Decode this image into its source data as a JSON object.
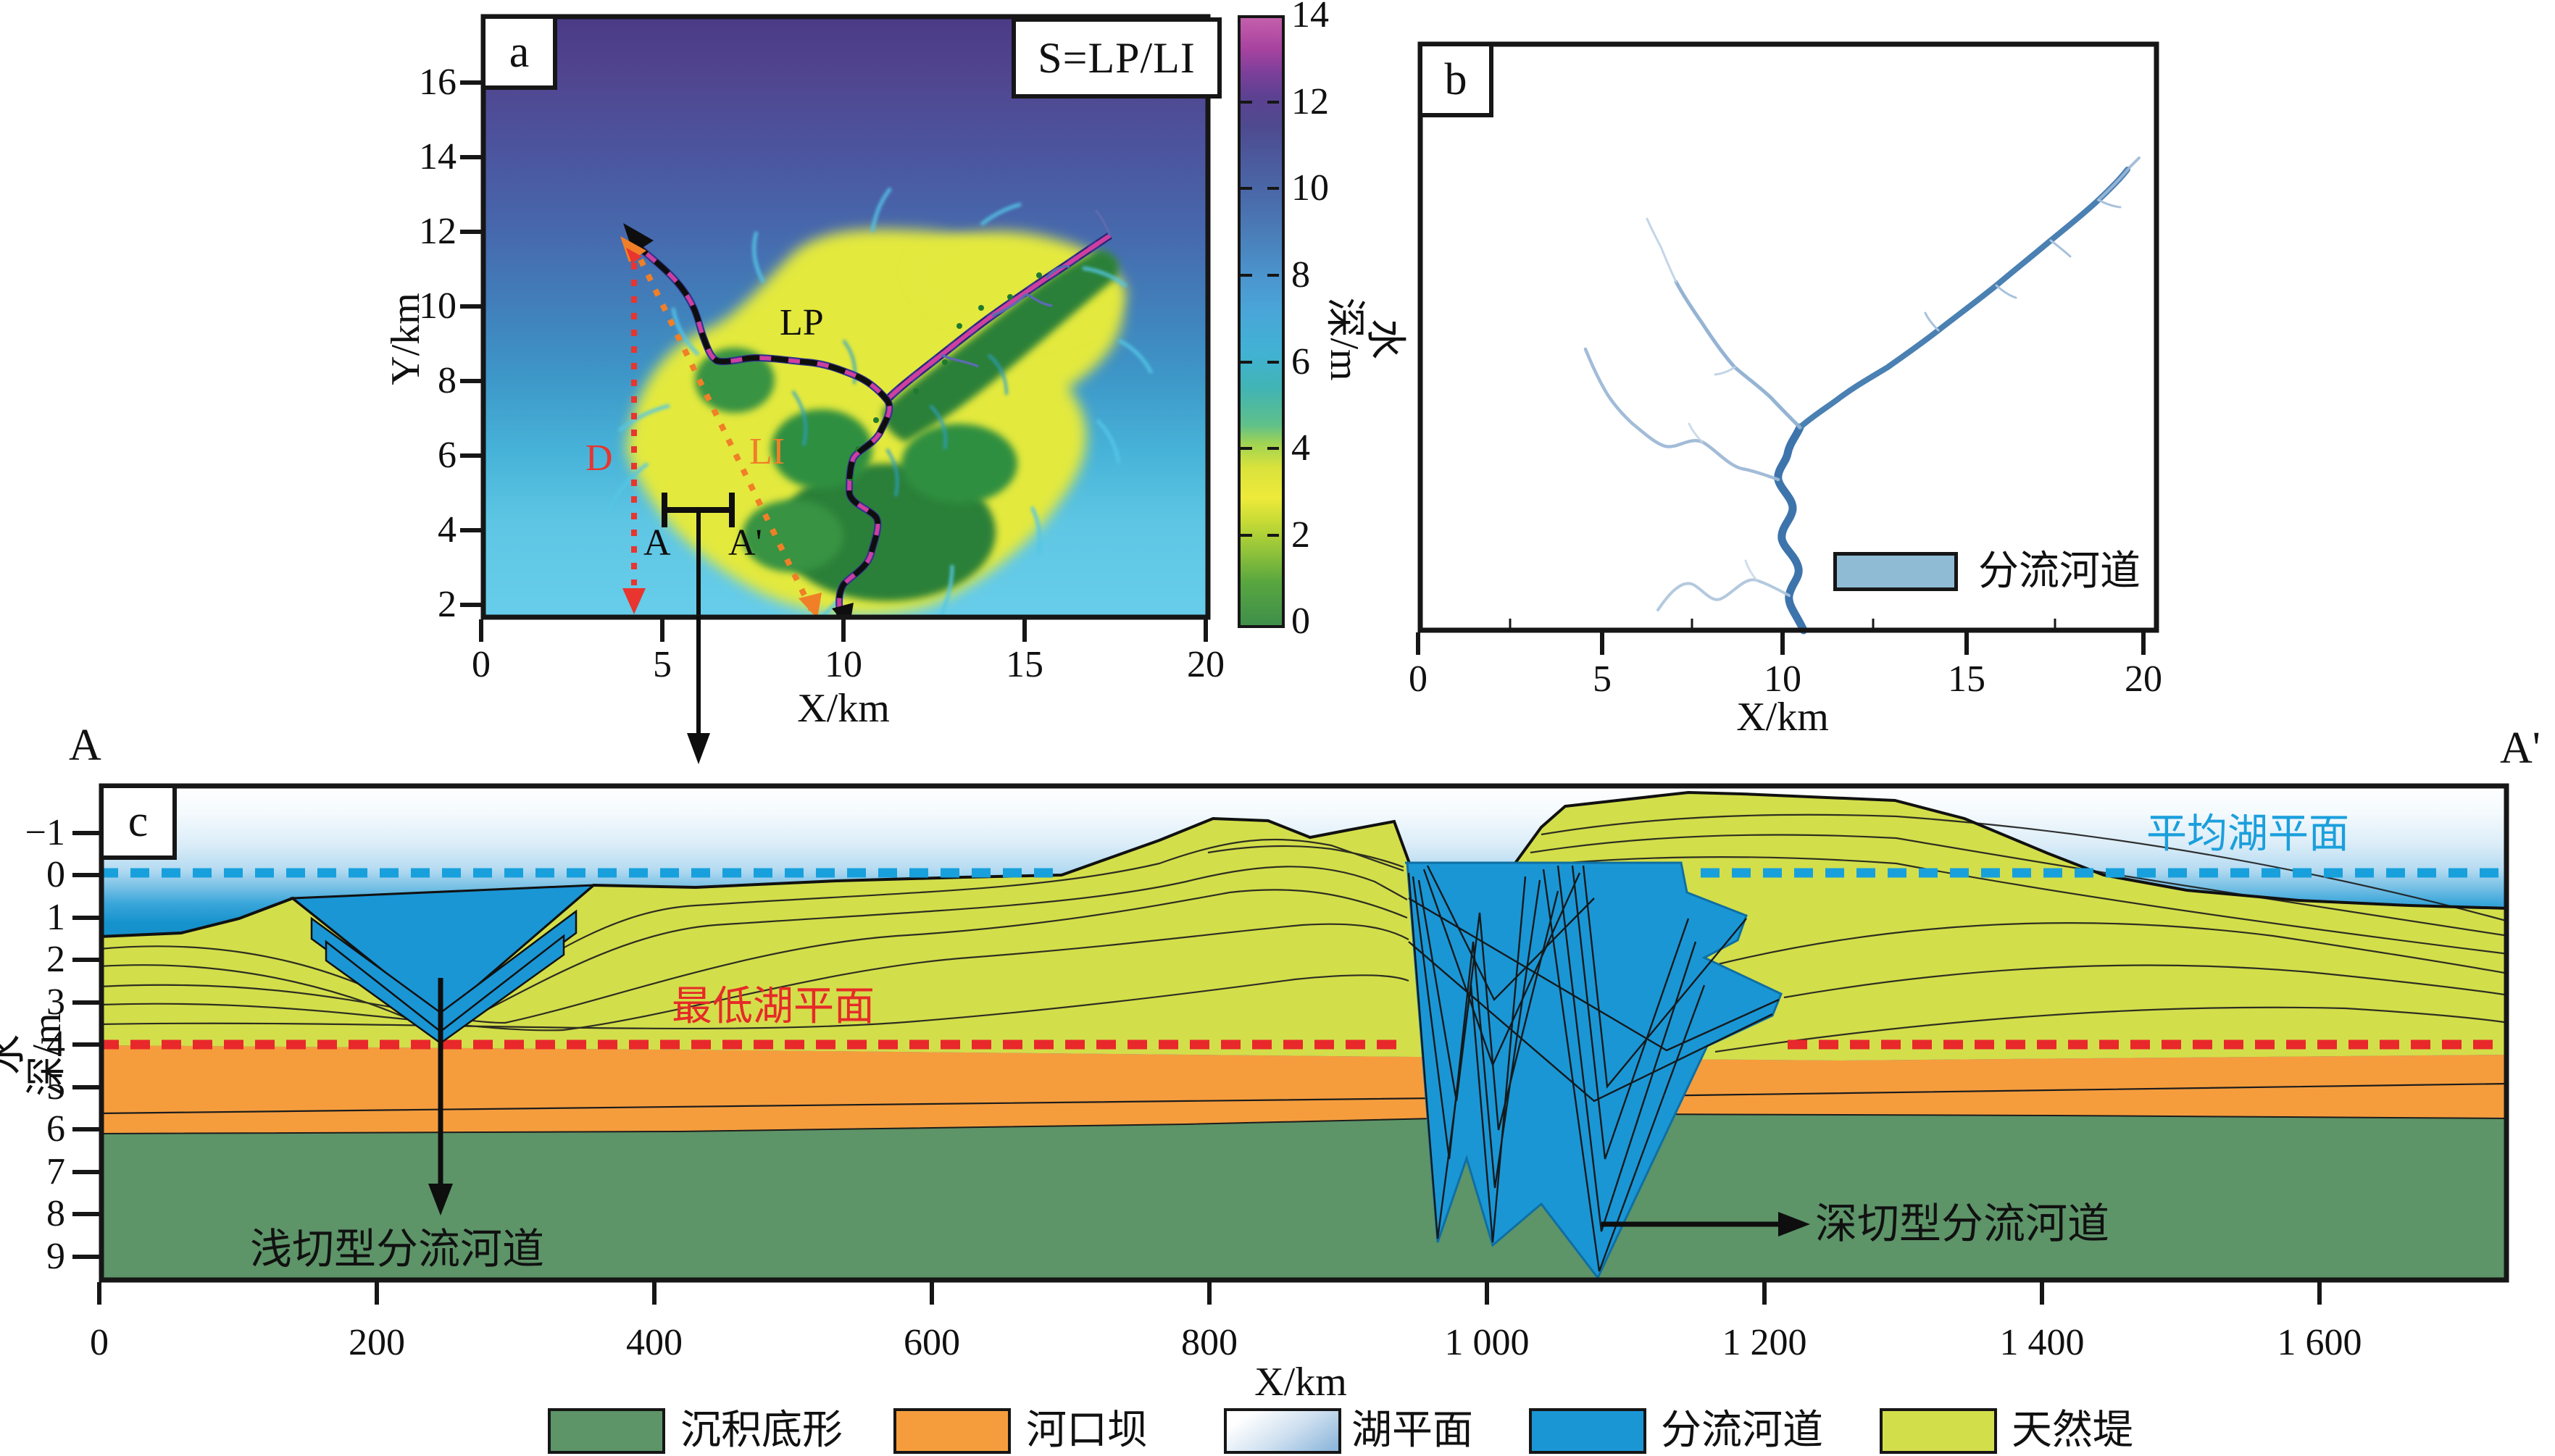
{
  "panel_a": {
    "tag": "a",
    "formula": "S=LP/LI",
    "xlabel": "X/km",
    "ylabel": "Y/km",
    "x_ticks": [
      "0",
      "5",
      "10",
      "15",
      "20"
    ],
    "y_ticks": [
      "16",
      "14",
      "12",
      "10",
      "8",
      "6",
      "4",
      "2"
    ],
    "labels": {
      "lp": "LP",
      "li": "LI",
      "d": "D",
      "a": "A",
      "a_prime": "A'"
    }
  },
  "colorbar": {
    "label": "水深/m",
    "ticks": [
      "14",
      "12",
      "10",
      "8",
      "6",
      "4",
      "2",
      "0"
    ]
  },
  "panel_b": {
    "tag": "b",
    "xlabel": "X/km",
    "x_ticks": [
      "0",
      "5",
      "10",
      "15",
      "20"
    ],
    "legend_label": "分流河道"
  },
  "panel_c": {
    "tag": "c",
    "xlabel": "X/km",
    "ylabel": "水深/m",
    "x_ticks": [
      "0",
      "200",
      "400",
      "600",
      "800",
      "1 000",
      "1 200",
      "1 400",
      "1 600"
    ],
    "y_ticks": [
      "−1",
      "0",
      "1",
      "2",
      "3",
      "4",
      "5",
      "6",
      "7",
      "8",
      "9"
    ],
    "section_start": "A",
    "section_end": "A'",
    "mean_lake_label": "平均湖平面",
    "lowest_lake_label": "最低湖平面",
    "shallow_channel_label": "浅切型分流河道",
    "deep_channel_label": "深切型分流河道"
  },
  "legend": {
    "items": [
      {
        "label": "沉积底形",
        "color": "#5d9468"
      },
      {
        "label": "河口坝",
        "color": "#f59d3d"
      },
      {
        "label": "湖平面",
        "color": "gradient"
      },
      {
        "label": "分流河道",
        "color": "#1a96d5"
      },
      {
        "label": "天然堤",
        "color": "#d3de4b"
      }
    ]
  },
  "colors": {
    "channel_blue": "#1a96d5",
    "levee_yellow": "#d3de4b",
    "mouth_bar_orange": "#f59d3d",
    "substrate_green": "#5d9468",
    "mean_lake_line": "#18a0dc",
    "lowest_lake_line": "#e8282b",
    "li_orange": "#f07f28",
    "d_red": "#e8352f",
    "channel_magenta": "#cf3f9f"
  },
  "chart_data": [
    {
      "id": "a",
      "type": "heatmap",
      "title": "S=LP/LI",
      "xlabel": "X/km",
      "ylabel": "Y/km",
      "x_range": [
        0,
        20
      ],
      "y_range": [
        1.5,
        17.8
      ],
      "colorbar": {
        "label": "水深/m",
        "range": [
          0,
          14
        ],
        "ticks": [
          0,
          2,
          4,
          6,
          8,
          10,
          12,
          14
        ]
      },
      "annotations": [
        "LP",
        "LI",
        "D",
        "A",
        "A'"
      ],
      "description": "Simulated water-depth map: deep purple lake (12-14 m) at top grading to shallow cyan (6-8 m); a yellow-green delta fan (0-4 m) with a magenta distributary channel running from (17,12) to (10,0); LP = channel path length (black dashed), LI = straight-line length (orange dotted) from (4.2,11.7) to (9.8,0.3), D = red dotted vertical reference line at x=4.2, A–A' = cross-section marker at (5.1-6.9, 4.6)"
    },
    {
      "id": "b",
      "type": "map",
      "xlabel": "X/km",
      "x_range": [
        0,
        20
      ],
      "legend": [
        "分流河道"
      ],
      "description": "Extracted distributary-channel network in blue on white; trunk channel from (10.5,2) branching at (10.5,7) into a thick NE arm to (19.5,14), a NW arm to (6.3,12.7), a W arm to (5,8) and a faint SW arm"
    },
    {
      "id": "c",
      "type": "cross-section",
      "xlabel": "X/km",
      "ylabel": "水深/m",
      "x_range": [
        0,
        1730
      ],
      "depth_range_m": [
        -2.1,
        10
      ],
      "x_ticks": [
        0,
        200,
        400,
        600,
        800,
        1000,
        1200,
        1400,
        1600
      ],
      "y_ticks": [
        -1,
        0,
        1,
        2,
        3,
        4,
        5,
        6,
        7,
        8,
        9
      ],
      "levels": {
        "mean_lake_level_m": 0,
        "lowest_lake_level_m": 4
      },
      "layers": [
        {
          "name": "湖平面",
          "role": "lake water gradient above sediment surface"
        },
        {
          "name": "天然堤",
          "role": "levee wedge from surface down to ~4.1 m"
        },
        {
          "name": "河口坝",
          "role": "mouth-bar band ~4.1-6.0 m"
        },
        {
          "name": "沉积底形",
          "role": "substrate below ~6.0 m"
        }
      ],
      "channels": [
        {
          "name": "浅切型分流河道",
          "x_km": [
            140,
            355
          ],
          "base_depth_m": 3.9
        },
        {
          "name": "深切型分流河道",
          "x_km": [
            920,
            1215
          ],
          "base_depth_m": 9.6
        }
      ]
    }
  ]
}
